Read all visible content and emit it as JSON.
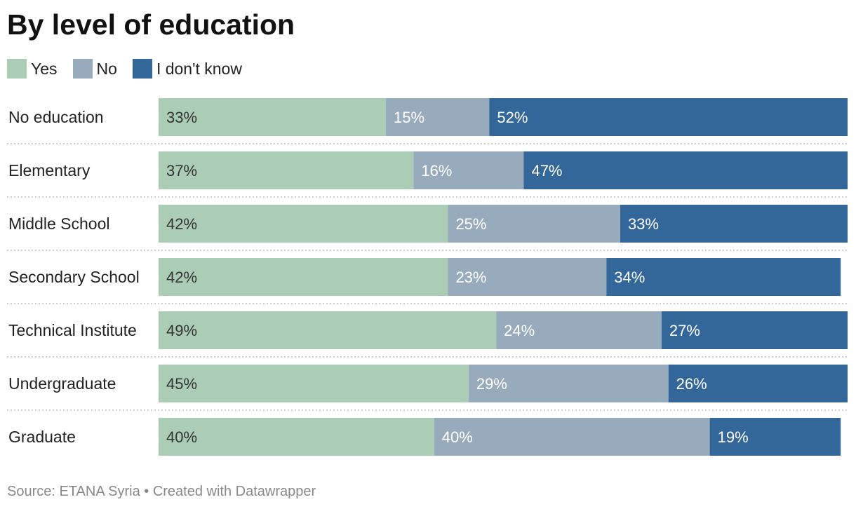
{
  "title": "By level of education",
  "source": "Source: ETANA Syria • Created with Datawrapper",
  "chart_data": {
    "type": "bar",
    "orientation": "horizontal",
    "stacked": true,
    "categories": [
      "No education",
      "Elementary",
      "Middle School",
      "Secondary School",
      "Technical Institute",
      "Undergraduate",
      "Graduate"
    ],
    "series": [
      {
        "name": "Yes",
        "color": "#abcdb5",
        "label_color": "#333333",
        "values": [
          33,
          37,
          42,
          42,
          49,
          45,
          40
        ]
      },
      {
        "name": "No",
        "color": "#98abbd",
        "label_color": "#ffffff",
        "values": [
          15,
          16,
          25,
          23,
          24,
          29,
          40
        ]
      },
      {
        "name": "I don't know",
        "color": "#336699",
        "label_color": "#ffffff",
        "values": [
          52,
          47,
          33,
          34,
          27,
          26,
          19
        ]
      }
    ],
    "value_suffix": "%",
    "legend_position": "top-left",
    "grid": false
  }
}
